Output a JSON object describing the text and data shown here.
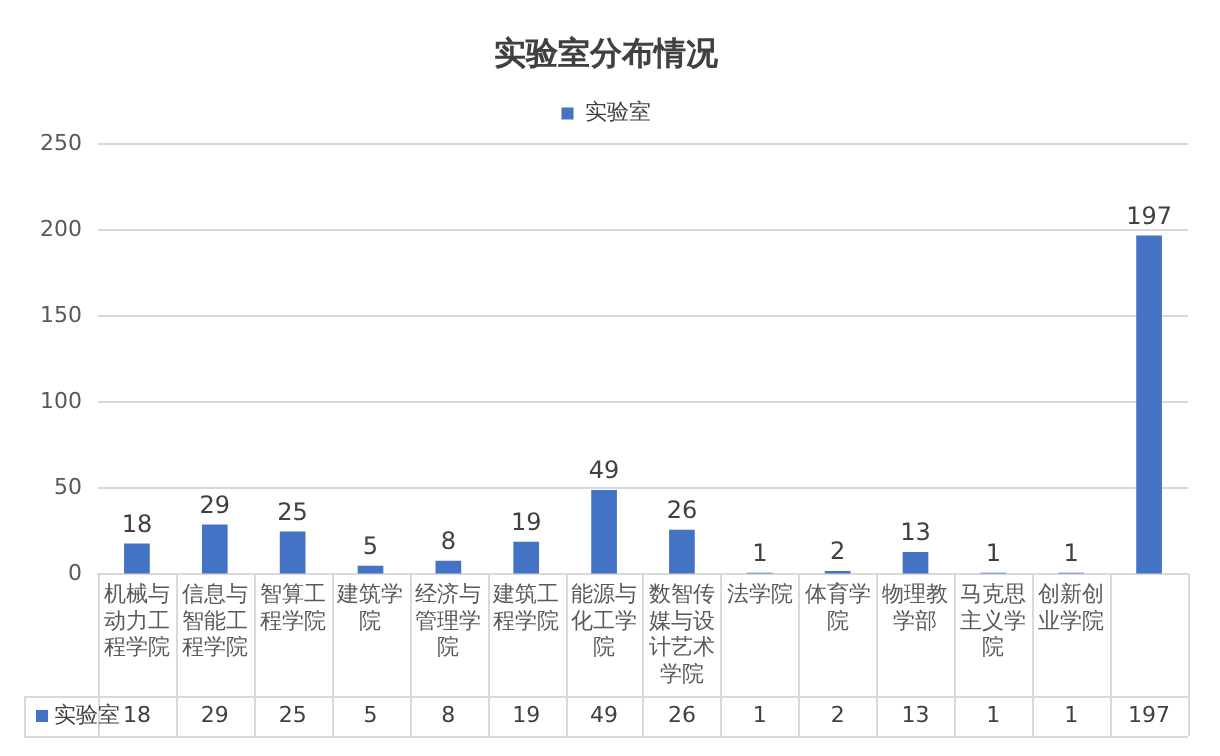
{
  "chart_data": {
    "type": "bar",
    "title": "实验室分布情况",
    "categories": [
      "机械与动力工程学院",
      "信息与智能工程学院",
      "智算工程学院",
      "建筑学院",
      "经济与管理学院",
      "建筑工程学院",
      "能源与化工学院",
      "数智传媒与设计艺术学院",
      "法学院",
      "体育学院",
      "物理教学部",
      "马克思主义学院",
      "创新创业学院",
      null
    ],
    "series": [
      {
        "name": "实验室",
        "color": "#4472c4",
        "values": [
          18,
          29,
          25,
          5,
          8,
          19,
          49,
          26,
          1,
          2,
          13,
          1,
          1,
          197
        ],
        "value_labels": [
          "18",
          "29",
          "25",
          "5",
          "8",
          "19",
          "49",
          "26",
          "1",
          "2",
          "13",
          "1",
          "1",
          "197"
        ]
      }
    ],
    "ylim": [
      0,
      250
    ],
    "yticks": [
      0,
      50,
      100,
      150,
      200,
      250
    ],
    "grid": "y",
    "legend": "top",
    "data_labels": true
  }
}
